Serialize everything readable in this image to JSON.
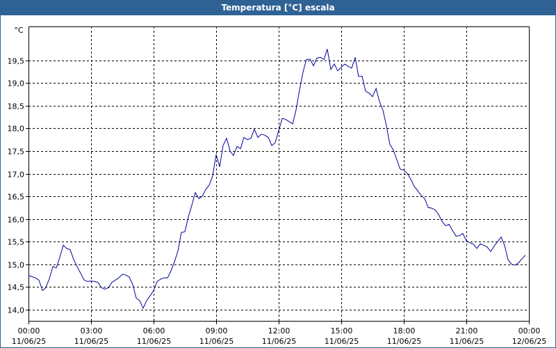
{
  "window": {
    "title": "Temperatura [°C] escala"
  },
  "colors": {
    "title_bar": "#2f6294",
    "line": "#000099",
    "grid": "#000000"
  },
  "chart_data": {
    "type": "line",
    "title": "Temperatura [°C] escala",
    "ylabel": "°C",
    "xlabel": "",
    "ylim": [
      13.75,
      20.25
    ],
    "xlim_hours": [
      0,
      24
    ],
    "grid": true,
    "grid_style": "dashed",
    "y_ticks": [
      {
        "value": 14.0,
        "label": "14,0"
      },
      {
        "value": 14.5,
        "label": "14,5"
      },
      {
        "value": 15.0,
        "label": "15,0"
      },
      {
        "value": 15.5,
        "label": "15,5"
      },
      {
        "value": 16.0,
        "label": "16,0"
      },
      {
        "value": 16.5,
        "label": "16,5"
      },
      {
        "value": 17.0,
        "label": "17,0"
      },
      {
        "value": 17.5,
        "label": "17,5"
      },
      {
        "value": 18.0,
        "label": "18,0"
      },
      {
        "value": 18.5,
        "label": "18,5"
      },
      {
        "value": 19.0,
        "label": "19,0"
      },
      {
        "value": 19.5,
        "label": "19,5"
      }
    ],
    "x_ticks": [
      {
        "value": 0,
        "time": "00:00",
        "date": "11/06/25"
      },
      {
        "value": 3,
        "time": "03:00",
        "date": "11/06/25"
      },
      {
        "value": 6,
        "time": "06:00",
        "date": "11/06/25"
      },
      {
        "value": 9,
        "time": "09:00",
        "date": "11/06/25"
      },
      {
        "value": 12,
        "time": "12:00",
        "date": "11/06/25"
      },
      {
        "value": 15,
        "time": "15:00",
        "date": "11/06/25"
      },
      {
        "value": 18,
        "time": "18:00",
        "date": "11/06/25"
      },
      {
        "value": 21,
        "time": "21:00",
        "date": "11/06/25"
      },
      {
        "value": 24,
        "time": "00:00",
        "date": "12/06/25"
      }
    ],
    "series": [
      {
        "points": [
          [
            0.0,
            14.75
          ],
          [
            0.33,
            14.7
          ],
          [
            0.5,
            14.65
          ],
          [
            0.67,
            14.42
          ],
          [
            0.83,
            14.48
          ],
          [
            1.0,
            14.68
          ],
          [
            1.17,
            14.95
          ],
          [
            1.33,
            14.92
          ],
          [
            1.5,
            15.15
          ],
          [
            1.67,
            15.42
          ],
          [
            1.83,
            15.35
          ],
          [
            2.0,
            15.32
          ],
          [
            2.17,
            15.1
          ],
          [
            2.33,
            14.95
          ],
          [
            2.5,
            14.8
          ],
          [
            2.67,
            14.65
          ],
          [
            2.83,
            14.62
          ],
          [
            3.0,
            14.63
          ],
          [
            3.17,
            14.62
          ],
          [
            3.33,
            14.6
          ],
          [
            3.5,
            14.48
          ],
          [
            3.67,
            14.45
          ],
          [
            3.83,
            14.48
          ],
          [
            4.0,
            14.6
          ],
          [
            4.17,
            14.65
          ],
          [
            4.33,
            14.7
          ],
          [
            4.5,
            14.78
          ],
          [
            4.67,
            14.76
          ],
          [
            4.83,
            14.72
          ],
          [
            5.0,
            14.55
          ],
          [
            5.17,
            14.25
          ],
          [
            5.33,
            14.2
          ],
          [
            5.5,
            14.03
          ],
          [
            5.67,
            14.2
          ],
          [
            5.83,
            14.3
          ],
          [
            6.0,
            14.42
          ],
          [
            6.17,
            14.62
          ],
          [
            6.33,
            14.67
          ],
          [
            6.5,
            14.7
          ],
          [
            6.67,
            14.7
          ],
          [
            6.83,
            14.85
          ],
          [
            7.0,
            15.05
          ],
          [
            7.17,
            15.3
          ],
          [
            7.33,
            15.7
          ],
          [
            7.5,
            15.72
          ],
          [
            7.67,
            16.05
          ],
          [
            7.83,
            16.3
          ],
          [
            8.0,
            16.58
          ],
          [
            8.17,
            16.45
          ],
          [
            8.33,
            16.5
          ],
          [
            8.5,
            16.65
          ],
          [
            8.67,
            16.75
          ],
          [
            8.83,
            16.95
          ],
          [
            9.0,
            17.42
          ],
          [
            9.17,
            17.15
          ],
          [
            9.33,
            17.62
          ],
          [
            9.5,
            17.78
          ],
          [
            9.67,
            17.5
          ],
          [
            9.83,
            17.4
          ],
          [
            10.0,
            17.6
          ],
          [
            10.17,
            17.55
          ],
          [
            10.33,
            17.8
          ],
          [
            10.5,
            17.75
          ],
          [
            10.67,
            17.78
          ],
          [
            10.83,
            17.98
          ],
          [
            11.0,
            17.8
          ],
          [
            11.17,
            17.87
          ],
          [
            11.33,
            17.85
          ],
          [
            11.5,
            17.8
          ],
          [
            11.67,
            17.62
          ],
          [
            11.83,
            17.68
          ],
          [
            12.0,
            17.95
          ],
          [
            12.17,
            18.22
          ],
          [
            12.33,
            18.2
          ],
          [
            12.5,
            18.15
          ],
          [
            12.67,
            18.1
          ],
          [
            12.83,
            18.4
          ],
          [
            13.0,
            18.85
          ],
          [
            13.17,
            19.25
          ],
          [
            13.33,
            19.52
          ],
          [
            13.5,
            19.53
          ],
          [
            13.67,
            19.38
          ],
          [
            13.83,
            19.55
          ],
          [
            14.0,
            19.57
          ],
          [
            14.17,
            19.52
          ],
          [
            14.33,
            19.75
          ],
          [
            14.5,
            19.3
          ],
          [
            14.67,
            19.42
          ],
          [
            14.83,
            19.27
          ],
          [
            15.0,
            19.35
          ],
          [
            15.17,
            19.42
          ],
          [
            15.33,
            19.37
          ],
          [
            15.5,
            19.33
          ],
          [
            15.67,
            19.57
          ],
          [
            15.83,
            19.15
          ],
          [
            16.0,
            19.15
          ],
          [
            16.17,
            18.82
          ],
          [
            16.33,
            18.78
          ],
          [
            16.5,
            18.7
          ],
          [
            16.67,
            18.88
          ],
          [
            16.83,
            18.6
          ],
          [
            17.0,
            18.4
          ],
          [
            17.17,
            18.05
          ],
          [
            17.33,
            17.65
          ],
          [
            17.5,
            17.52
          ],
          [
            17.67,
            17.3
          ],
          [
            17.83,
            17.1
          ],
          [
            18.0,
            17.08
          ],
          [
            18.17,
            17.0
          ],
          [
            18.33,
            16.88
          ],
          [
            18.5,
            16.72
          ],
          [
            18.67,
            16.62
          ],
          [
            18.83,
            16.52
          ],
          [
            19.0,
            16.45
          ],
          [
            19.17,
            16.25
          ],
          [
            19.33,
            16.24
          ],
          [
            19.5,
            16.2
          ],
          [
            19.67,
            16.1
          ],
          [
            19.83,
            15.95
          ],
          [
            20.0,
            15.85
          ],
          [
            20.17,
            15.88
          ],
          [
            20.33,
            15.75
          ],
          [
            20.5,
            15.62
          ],
          [
            20.67,
            15.63
          ],
          [
            20.83,
            15.68
          ],
          [
            21.0,
            15.52
          ],
          [
            21.17,
            15.47
          ],
          [
            21.33,
            15.45
          ],
          [
            21.5,
            15.35
          ],
          [
            21.67,
            15.45
          ],
          [
            21.83,
            15.42
          ],
          [
            22.0,
            15.38
          ],
          [
            22.17,
            15.28
          ],
          [
            22.33,
            15.4
          ],
          [
            22.5,
            15.5
          ],
          [
            22.67,
            15.6
          ],
          [
            22.83,
            15.42
          ],
          [
            23.0,
            15.1
          ],
          [
            23.17,
            15.0
          ],
          [
            23.33,
            14.98
          ],
          [
            23.5,
            15.03
          ],
          [
            23.67,
            15.12
          ],
          [
            23.83,
            15.2
          ]
        ]
      }
    ]
  }
}
